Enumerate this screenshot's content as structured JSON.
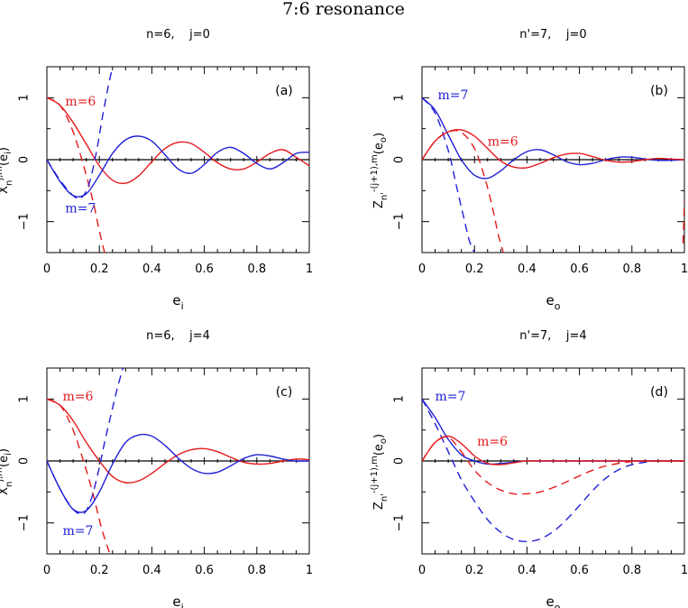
{
  "figure_title": "7:6 resonance",
  "colors": {
    "red": "#e41a1c",
    "blue": "#1f1fd6",
    "axis": "#000000"
  },
  "chart_data": [
    {
      "type": "line",
      "panel": "(a)",
      "title": "n=6,    j=0",
      "xlabel": "e_i",
      "ylabel": "X_n^{j,m}(e_i)",
      "xlim": [
        0,
        1
      ],
      "ylim": [
        -1.5,
        1.5
      ],
      "xticks": [
        "0",
        "0.2",
        "0.4",
        "0.6",
        "0.8",
        "1"
      ],
      "yticks": [
        "−1",
        "0",
        "1"
      ],
      "series": [
        {
          "name": "m=6",
          "color": "red",
          "dash": false,
          "x": [
            0,
            0.05,
            0.1,
            0.15,
            0.2,
            0.25,
            0.3,
            0.35,
            0.4,
            0.45,
            0.5,
            0.55,
            0.6,
            0.65,
            0.7,
            0.75,
            0.8,
            0.85,
            0.9,
            0.95,
            1.0
          ],
          "y": [
            1.0,
            0.88,
            0.6,
            0.25,
            -0.1,
            -0.33,
            -0.38,
            -0.26,
            -0.03,
            0.18,
            0.28,
            0.26,
            0.12,
            -0.05,
            -0.15,
            -0.15,
            -0.04,
            0.1,
            0.16,
            0.04,
            -0.1
          ]
        },
        {
          "name": "m=6 dashed",
          "color": "red",
          "dash": true,
          "x": [
            0,
            0.05,
            0.1,
            0.15,
            0.18,
            0.2,
            0.22
          ],
          "y": [
            1.0,
            0.88,
            0.45,
            -0.25,
            -0.75,
            -1.15,
            -1.5
          ]
        },
        {
          "name": "m=7",
          "color": "blue",
          "dash": false,
          "x": [
            0,
            0.05,
            0.1,
            0.15,
            0.2,
            0.25,
            0.3,
            0.35,
            0.4,
            0.45,
            0.5,
            0.55,
            0.6,
            0.65,
            0.7,
            0.75,
            0.8,
            0.85,
            0.9,
            0.95,
            1.0
          ],
          "y": [
            0,
            -0.35,
            -0.58,
            -0.55,
            -0.25,
            0.1,
            0.32,
            0.38,
            0.3,
            0.08,
            -0.15,
            -0.22,
            -0.08,
            0.12,
            0.2,
            0.1,
            -0.06,
            -0.15,
            -0.05,
            0.1,
            0.12
          ]
        },
        {
          "name": "m=7 dashed",
          "color": "blue",
          "dash": true,
          "x": [
            0,
            0.05,
            0.1,
            0.13,
            0.16,
            0.19,
            0.21,
            0.23,
            0.25
          ],
          "y": [
            0,
            -0.33,
            -0.58,
            -0.62,
            -0.4,
            0.15,
            0.65,
            1.1,
            1.5
          ]
        }
      ],
      "annotations": [
        {
          "text": "m=6",
          "color": "red",
          "x": 0.07,
          "y": 0.95
        },
        {
          "text": "m=7",
          "color": "blue",
          "x": 0.07,
          "y": -0.78
        }
      ]
    },
    {
      "type": "line",
      "panel": "(b)",
      "title": "n'=7,    j=0",
      "xlabel": "e_o",
      "ylabel": "Z_n'^{-(j+1),m}(e_o)",
      "xlim": [
        0,
        1
      ],
      "ylim": [
        -1.5,
        1.5
      ],
      "xticks": [
        "0",
        "0.2",
        "0.4",
        "0.6",
        "0.8",
        "1"
      ],
      "yticks": [
        "−1",
        "0",
        "1"
      ],
      "series": [
        {
          "name": "m=7",
          "color": "blue",
          "dash": false,
          "x": [
            0,
            0.05,
            0.1,
            0.15,
            0.2,
            0.25,
            0.3,
            0.35,
            0.4,
            0.45,
            0.5,
            0.55,
            0.6,
            0.65,
            0.7,
            0.75,
            0.8,
            0.85,
            0.9,
            0.95,
            1.0
          ],
          "y": [
            1.0,
            0.8,
            0.4,
            0.0,
            -0.25,
            -0.3,
            -0.18,
            0.0,
            0.13,
            0.16,
            0.08,
            -0.03,
            -0.08,
            -0.06,
            0.0,
            0.04,
            0.04,
            0.01,
            -0.01,
            -0.01,
            0.0
          ]
        },
        {
          "name": "m=7 dashed",
          "color": "blue",
          "dash": true,
          "x": [
            0,
            0.05,
            0.1,
            0.13,
            0.16,
            0.18,
            0.2
          ],
          "y": [
            1.0,
            0.75,
            0.15,
            -0.4,
            -0.95,
            -1.3,
            -1.5
          ]
        },
        {
          "name": "m=6",
          "color": "red",
          "dash": false,
          "x": [
            0,
            0.05,
            0.1,
            0.15,
            0.2,
            0.25,
            0.3,
            0.35,
            0.4,
            0.45,
            0.5,
            0.55,
            0.6,
            0.65,
            0.7,
            0.75,
            0.8,
            0.85,
            0.9,
            0.95,
            1.0
          ],
          "y": [
            0,
            0.3,
            0.45,
            0.48,
            0.38,
            0.18,
            -0.02,
            -0.12,
            -0.13,
            -0.06,
            0.03,
            0.09,
            0.1,
            0.05,
            -0.01,
            -0.04,
            -0.03,
            0.0,
            0.02,
            0.01,
            0.0
          ]
        },
        {
          "name": "m=6 dashed",
          "color": "red",
          "dash": true,
          "x": [
            0,
            0.05,
            0.1,
            0.15,
            0.2,
            0.24,
            0.27,
            0.29,
            0.31
          ],
          "y": [
            0,
            0.3,
            0.45,
            0.44,
            0.18,
            -0.3,
            -0.8,
            -1.2,
            -1.5
          ]
        },
        {
          "name": "edge dashed",
          "color": "red",
          "dash": true,
          "x": [
            0.995,
            1.0
          ],
          "y": [
            -1.35,
            -0.65
          ]
        }
      ],
      "annotations": [
        {
          "text": "m=7",
          "color": "blue",
          "x": 0.06,
          "y": 1.05
        },
        {
          "text": "m=6",
          "color": "red",
          "x": 0.25,
          "y": 0.3
        }
      ]
    },
    {
      "type": "line",
      "panel": "(c)",
      "title": "n=6,    j=4",
      "xlabel": "e_i",
      "ylabel": "X_n^{j,m}(e_i)",
      "xlim": [
        0,
        1
      ],
      "ylim": [
        -1.5,
        1.5
      ],
      "xticks": [
        "0",
        "0.2",
        "0.4",
        "0.6",
        "0.8",
        "1"
      ],
      "yticks": [
        "−1",
        "0",
        "1"
      ],
      "series": [
        {
          "name": "m=6",
          "color": "red",
          "dash": false,
          "x": [
            0,
            0.05,
            0.1,
            0.15,
            0.2,
            0.25,
            0.3,
            0.35,
            0.4,
            0.45,
            0.5,
            0.55,
            0.6,
            0.65,
            0.7,
            0.75,
            0.8,
            0.85,
            0.9,
            0.95,
            1.0
          ],
          "y": [
            1.0,
            0.9,
            0.65,
            0.3,
            0.0,
            -0.25,
            -0.35,
            -0.32,
            -0.2,
            -0.04,
            0.1,
            0.18,
            0.2,
            0.15,
            0.06,
            -0.02,
            -0.05,
            -0.04,
            0.0,
            0.03,
            0.02
          ]
        },
        {
          "name": "m=6 dashed",
          "color": "red",
          "dash": true,
          "x": [
            0,
            0.05,
            0.1,
            0.15,
            0.18,
            0.2,
            0.22,
            0.24
          ],
          "y": [
            1.0,
            0.9,
            0.5,
            -0.15,
            -0.6,
            -0.95,
            -1.25,
            -1.5
          ]
        },
        {
          "name": "m=7",
          "color": "blue",
          "dash": false,
          "x": [
            0,
            0.05,
            0.1,
            0.15,
            0.2,
            0.25,
            0.3,
            0.35,
            0.4,
            0.45,
            0.5,
            0.55,
            0.6,
            0.65,
            0.7,
            0.75,
            0.8,
            0.85,
            0.9,
            0.95,
            1.0
          ],
          "y": [
            0,
            -0.45,
            -0.78,
            -0.8,
            -0.5,
            -0.05,
            0.3,
            0.42,
            0.4,
            0.25,
            0.05,
            -0.12,
            -0.2,
            -0.18,
            -0.08,
            0.04,
            0.1,
            0.08,
            0.03,
            0.0,
            0.0
          ]
        },
        {
          "name": "m=7 dashed",
          "color": "blue",
          "dash": true,
          "x": [
            0,
            0.05,
            0.1,
            0.14,
            0.17,
            0.2,
            0.22,
            0.25,
            0.27,
            0.29
          ],
          "y": [
            0,
            -0.45,
            -0.78,
            -0.85,
            -0.6,
            -0.1,
            0.3,
            0.85,
            1.2,
            1.5
          ]
        }
      ],
      "annotations": [
        {
          "text": "m=6",
          "color": "red",
          "x": 0.06,
          "y": 1.05
        },
        {
          "text": "m=7",
          "color": "blue",
          "x": 0.06,
          "y": -1.12
        }
      ]
    },
    {
      "type": "line",
      "panel": "(d)",
      "title": "n'=7,    j=4",
      "xlabel": "e_o",
      "ylabel": "Z_n'^{-(j+1),m}(e_o)",
      "xlim": [
        0,
        1
      ],
      "ylim": [
        -1.5,
        1.5
      ],
      "xticks": [
        "0",
        "0.2",
        "0.4",
        "0.6",
        "0.8",
        "1"
      ],
      "yticks": [
        "−1",
        "0",
        "1"
      ],
      "series": [
        {
          "name": "m=7",
          "color": "blue",
          "dash": false,
          "x": [
            0,
            0.05,
            0.1,
            0.15,
            0.2,
            0.25,
            0.3,
            0.35,
            0.4,
            0.45,
            0.5,
            0.6,
            0.7,
            0.8,
            0.9,
            1.0
          ],
          "y": [
            1.0,
            0.7,
            0.35,
            0.1,
            0.0,
            -0.05,
            -0.04,
            -0.02,
            0.0,
            0.0,
            0.0,
            0.0,
            0.0,
            0.0,
            0.0,
            0.0
          ]
        },
        {
          "name": "m=7 dashed",
          "color": "blue",
          "dash": true,
          "x": [
            0,
            0.05,
            0.1,
            0.15,
            0.2,
            0.25,
            0.3,
            0.35,
            0.4,
            0.45,
            0.5,
            0.55,
            0.6,
            0.65,
            0.7,
            0.75,
            0.8,
            0.85,
            0.9,
            1.0
          ],
          "y": [
            1.0,
            0.6,
            0.15,
            -0.3,
            -0.65,
            -0.95,
            -1.15,
            -1.27,
            -1.3,
            -1.26,
            -1.14,
            -0.95,
            -0.72,
            -0.48,
            -0.28,
            -0.14,
            -0.06,
            -0.02,
            0.0,
            0.0
          ]
        },
        {
          "name": "m=6",
          "color": "red",
          "dash": false,
          "x": [
            0,
            0.05,
            0.1,
            0.15,
            0.2,
            0.25,
            0.3,
            0.35,
            0.4,
            0.5,
            0.6,
            0.7,
            0.8,
            0.9,
            1.0
          ],
          "y": [
            0,
            0.3,
            0.4,
            0.28,
            0.08,
            -0.04,
            -0.06,
            -0.03,
            0.0,
            0.0,
            0.0,
            0.0,
            0.0,
            0.0,
            0.0
          ]
        },
        {
          "name": "m=6 dashed",
          "color": "red",
          "dash": true,
          "x": [
            0,
            0.05,
            0.1,
            0.15,
            0.2,
            0.25,
            0.3,
            0.35,
            0.4,
            0.45,
            0.5,
            0.55,
            0.6,
            0.65,
            0.7,
            0.75,
            0.8,
            0.85,
            0.9,
            1.0
          ],
          "y": [
            0,
            0.3,
            0.38,
            0.15,
            -0.15,
            -0.35,
            -0.47,
            -0.53,
            -0.53,
            -0.5,
            -0.43,
            -0.34,
            -0.24,
            -0.15,
            -0.08,
            -0.04,
            -0.01,
            0.0,
            0.0,
            0.0
          ]
        }
      ],
      "annotations": [
        {
          "text": "m=7",
          "color": "blue",
          "x": 0.05,
          "y": 1.05
        },
        {
          "text": "m=6",
          "color": "red",
          "x": 0.21,
          "y": 0.32
        }
      ]
    }
  ]
}
